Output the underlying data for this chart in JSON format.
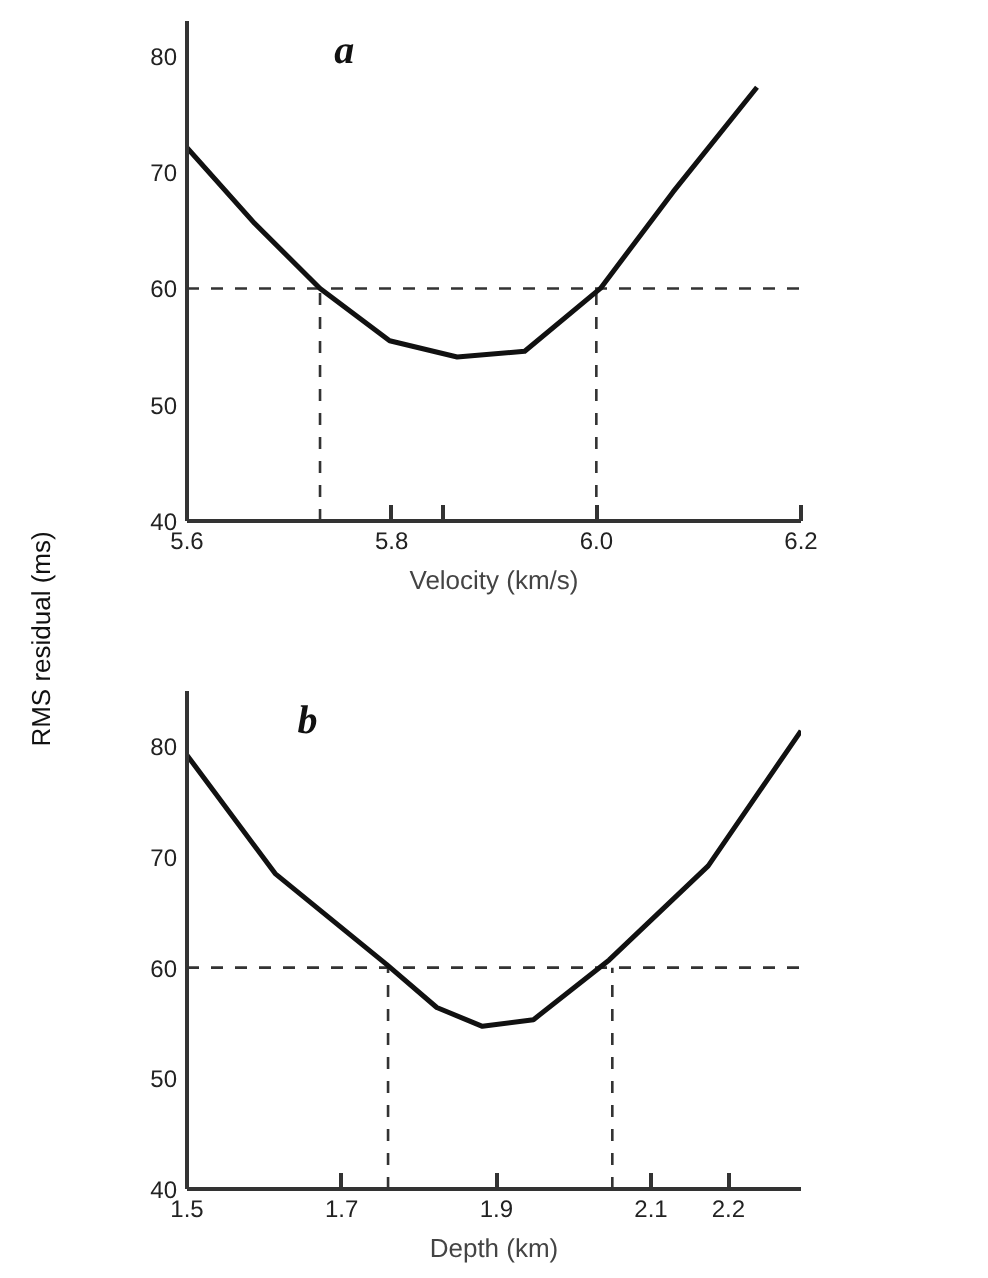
{
  "chart_data": [
    {
      "type": "line",
      "ylabel": "RMS residual (ms)",
      "xlabel": "Velocity (km/s)",
      "annotations": [
        "a"
      ],
      "series": [
        {
          "color": "#111111",
          "x": [
            5.6,
            5.666,
            5.73,
            5.798,
            5.864,
            5.93,
            6.004,
            6.075,
            6.157
          ],
          "values": [
            72.1,
            65.6,
            60,
            55.5,
            54.1,
            54.6,
            60,
            68.3,
            77.3
          ]
        }
      ],
      "xlim": [
        5.6,
        6.2
      ],
      "ylim": [
        40,
        83
      ],
      "xticks": [
        5.6,
        5.8,
        {
          "value": 5.85,
          "label": null
        },
        {
          "value": 6.0,
          "label": "6.0"
        },
        6.2
      ],
      "yticks": [
        40,
        50,
        60,
        70,
        80
      ],
      "ref_lines": [
        {
          "axis": "y",
          "value": 60,
          "color": "#333333",
          "line_style": "dashed"
        },
        {
          "axis": "x",
          "value": 5.73,
          "color": "#333333",
          "line_style": "dashed"
        },
        {
          "axis": "x",
          "value": 6.0,
          "color": "#333333",
          "line_style": "dashed"
        }
      ],
      "grid": false,
      "marker": "none",
      "line_style": "solid"
    },
    {
      "type": "line",
      "xlabel": "Depth (km)",
      "annotations": [
        "b"
      ],
      "series": [
        {
          "color": "#111111",
          "x": [
            1.5,
            1.614,
            1.758,
            1.823,
            1.882,
            1.948,
            2.046,
            2.174,
            2.294
          ],
          "values": [
            79.2,
            68.5,
            60.3,
            56.4,
            54.7,
            55.3,
            60.7,
            69.2,
            81.4
          ]
        }
      ],
      "xlim": [
        1.5,
        2.294
      ],
      "ylim": [
        40,
        85
      ],
      "xticks": [
        1.5,
        1.7,
        1.9,
        2.1,
        2.2
      ],
      "yticks": [
        40,
        50,
        60,
        70,
        80
      ],
      "ref_lines": [
        {
          "axis": "y",
          "value": 60,
          "color": "#333333",
          "line_style": "dashed"
        },
        {
          "axis": "x",
          "value": 1.76,
          "color": "#333333",
          "line_style": "dashed"
        },
        {
          "axis": "x",
          "value": 2.05,
          "color": "#333333",
          "line_style": "dashed"
        }
      ],
      "grid": false,
      "marker": "none",
      "line_style": "solid"
    }
  ]
}
